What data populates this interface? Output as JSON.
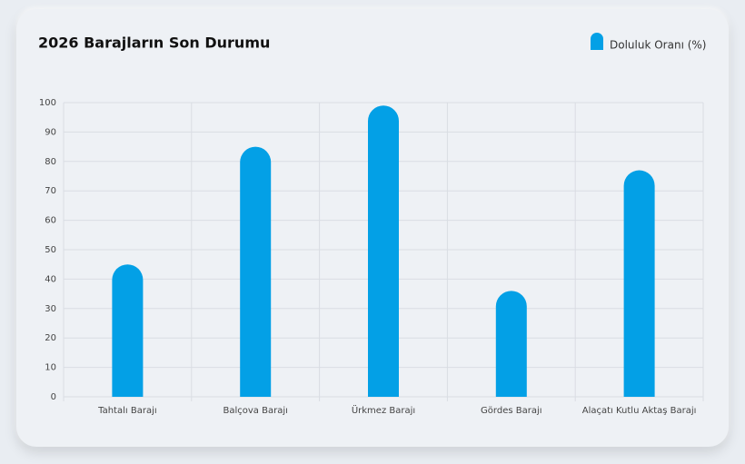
{
  "chart_data": {
    "type": "bar",
    "title": "2026 Barajların Son Durumu",
    "categories": [
      "Tahtalı Barajı",
      "Balçova Barajı",
      "Ürkmez Barajı",
      "Gördes Barajı",
      "Alaçatı Kutlu Aktaş Barajı"
    ],
    "series": [
      {
        "name": "Doluluk Oranı (%)",
        "color": "#03a0e6",
        "values": [
          45,
          85,
          99,
          36,
          77
        ]
      }
    ],
    "ylim": [
      0,
      100
    ],
    "yticks": [
      0,
      10,
      20,
      30,
      40,
      50,
      60,
      70,
      80,
      90,
      100
    ],
    "grid": true,
    "legend": "top-right"
  }
}
